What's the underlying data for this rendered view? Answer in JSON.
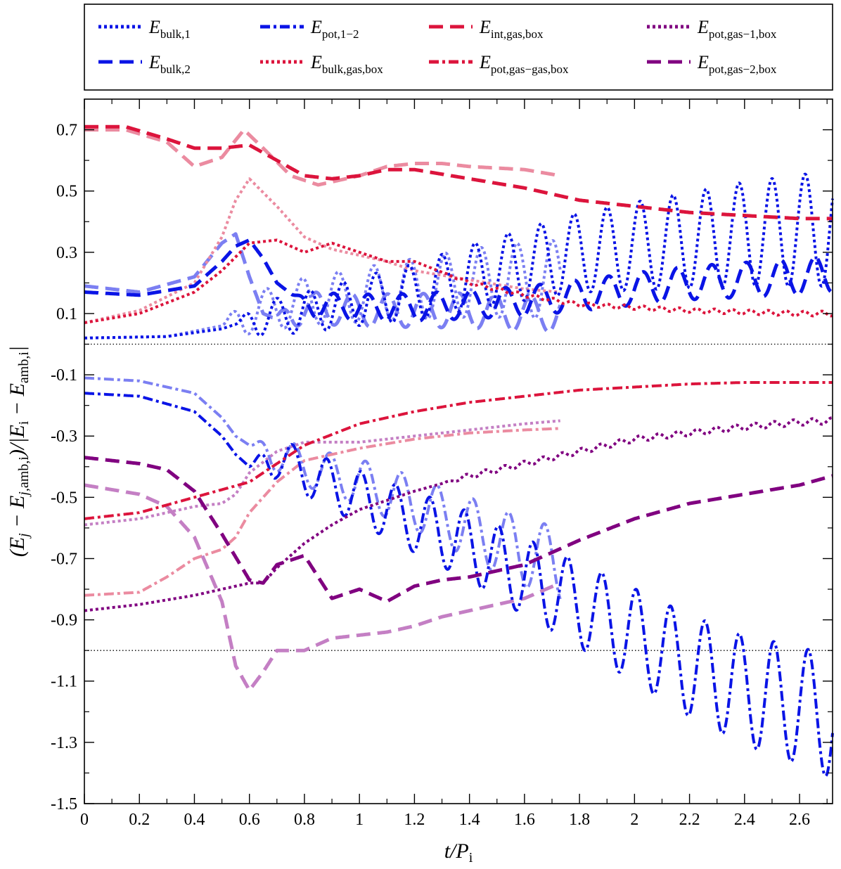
{
  "chart_data": {
    "type": "line",
    "xlabel": "t/P_i",
    "ylabel": "(E_j − E_j,amb,i)/|E_i − E_amb,i|",
    "xlim": [
      0,
      2.72
    ],
    "ylim": [
      -1.5,
      0.8
    ],
    "xticks": [
      {
        "value": 0,
        "label": "0"
      },
      {
        "value": 0.2,
        "label": "0.2"
      },
      {
        "value": 0.4,
        "label": "0.4"
      },
      {
        "value": 0.6,
        "label": "0.6"
      },
      {
        "value": 0.8,
        "label": "0.8"
      },
      {
        "value": 1,
        "label": "1"
      },
      {
        "value": 1.2,
        "label": "1.2"
      },
      {
        "value": 1.4,
        "label": "1.4"
      },
      {
        "value": 1.6,
        "label": "1.6"
      },
      {
        "value": 1.8,
        "label": "1.8"
      },
      {
        "value": 2,
        "label": "2"
      },
      {
        "value": 2.2,
        "label": "2.2"
      },
      {
        "value": 2.4,
        "label": "2.4"
      },
      {
        "value": 2.6,
        "label": "2.6"
      }
    ],
    "yticks": [
      {
        "value": 0.7,
        "label": "0.7"
      },
      {
        "value": 0.5,
        "label": "0.5"
      },
      {
        "value": 0.3,
        "label": "0.3"
      },
      {
        "value": 0.1,
        "label": "0.1"
      },
      {
        "value": -0.1,
        "label": "-0.1"
      },
      {
        "value": -0.3,
        "label": "-0.3"
      },
      {
        "value": -0.5,
        "label": "-0.5"
      },
      {
        "value": -0.7,
        "label": "-0.7"
      },
      {
        "value": -0.9,
        "label": "-0.9"
      },
      {
        "value": -1.1,
        "label": "-1.1"
      },
      {
        "value": -1.3,
        "label": "-1.3"
      },
      {
        "value": -1.5,
        "label": "-1.5"
      }
    ],
    "reference_lines": [
      0,
      -1
    ],
    "legend_placement": "top, outside plot, 4 columns",
    "legend": [
      {
        "name": "E_bulk,1",
        "base": "E",
        "sub": "bulk,1",
        "color": "#0a14e6",
        "dash": "4 4"
      },
      {
        "name": "E_bulk,2",
        "base": "E",
        "sub": "bulk,2",
        "color": "#0a14e6",
        "dash": "20 10"
      },
      {
        "name": "E_pot,1−2",
        "base": "E",
        "sub": "pot,1−2",
        "color": "#0a14e6",
        "dash": "14 5 4 5"
      },
      {
        "name": "E_bulk,gas,box",
        "base": "E",
        "sub": "bulk,gas,box",
        "color": "#dc143c",
        "dash": "4 4"
      },
      {
        "name": "E_int,gas,box",
        "base": "E",
        "sub": "int,gas,box",
        "color": "#dc143c",
        "dash": "20 10"
      },
      {
        "name": "E_pot,gas−gas,box",
        "base": "E",
        "sub": "pot,gas−gas,box",
        "color": "#dc143c",
        "dash": "14 5 4 5"
      },
      {
        "name": "E_pot,gas−1,box",
        "base": "E",
        "sub": "pot,gas−1,box",
        "color": "#800080",
        "dash": "4 4"
      },
      {
        "name": "E_pot,gas−2,box",
        "base": "E",
        "sub": "pot,gas−2,box",
        "color": "#800080",
        "dash": "20 10"
      }
    ],
    "series": [
      {
        "name": "E_bulk,1",
        "run": "main",
        "color": "#0a14e6",
        "width": 4,
        "dash": "4 4",
        "osc": {
          "start": 0.55,
          "period": 0.12,
          "amp0": 0.05,
          "amp1": 0.19
        },
        "x": [
          0,
          0.3,
          0.5,
          0.6,
          0.7,
          0.9,
          1.0,
          1.2,
          1.4,
          1.6,
          1.8,
          2.0,
          2.2,
          2.4,
          2.6,
          2.72
        ],
        "y": [
          0.02,
          0.025,
          0.05,
          0.08,
          0.09,
          0.12,
          0.14,
          0.17,
          0.22,
          0.26,
          0.3,
          0.32,
          0.34,
          0.36,
          0.37,
          0.38
        ]
      },
      {
        "name": "E_bulk,1",
        "run": "faded",
        "color": "#7b7ff2",
        "width": 4,
        "dash": "4 4",
        "osc": {
          "start": 0.5,
          "period": 0.13,
          "amp0": 0.06,
          "amp1": 0.13
        },
        "x": [
          0,
          0.3,
          0.5,
          0.6,
          0.8,
          1.0,
          1.2,
          1.4,
          1.6,
          1.73
        ],
        "y": [
          0.02,
          0.025,
          0.06,
          0.1,
          0.14,
          0.16,
          0.18,
          0.2,
          0.21,
          0.21
        ]
      },
      {
        "name": "E_bulk,2",
        "run": "main",
        "color": "#0a14e6",
        "width": 5,
        "dash": "20 10",
        "osc": {
          "start": 0.75,
          "period": 0.125,
          "amp0": 0.04,
          "amp1": 0.06
        },
        "x": [
          0,
          0.2,
          0.4,
          0.5,
          0.55,
          0.6,
          0.65,
          0.7,
          0.8,
          1.0,
          1.2,
          1.4,
          1.6,
          1.8,
          2.0,
          2.2,
          2.4,
          2.6,
          2.72
        ],
        "y": [
          0.17,
          0.16,
          0.19,
          0.27,
          0.32,
          0.34,
          0.28,
          0.2,
          0.13,
          0.12,
          0.12,
          0.13,
          0.14,
          0.16,
          0.18,
          0.2,
          0.21,
          0.22,
          0.23
        ]
      },
      {
        "name": "E_bulk,2",
        "run": "faded",
        "color": "#7b7ff2",
        "width": 5,
        "dash": "20 10",
        "osc": {
          "start": 0.68,
          "period": 0.13,
          "amp0": 0.05,
          "amp1": 0.06
        },
        "x": [
          0,
          0.2,
          0.4,
          0.5,
          0.55,
          0.6,
          0.65,
          0.7,
          0.8,
          1.0,
          1.2,
          1.4,
          1.6,
          1.73
        ],
        "y": [
          0.19,
          0.17,
          0.22,
          0.33,
          0.36,
          0.22,
          0.1,
          0.08,
          0.12,
          0.11,
          0.11,
          0.11,
          0.1,
          0.1
        ]
      },
      {
        "name": "E_pot,1−2",
        "run": "main",
        "color": "#0a14e6",
        "width": 4,
        "dash": "14 5 4 5",
        "osc": {
          "start": 0.6,
          "period": 0.125,
          "amp0": 0.06,
          "amp1": 0.2
        },
        "x": [
          0,
          0.2,
          0.4,
          0.5,
          0.55,
          0.6,
          0.7,
          0.8,
          1.0,
          1.2,
          1.4,
          1.6,
          1.8,
          2.0,
          2.2,
          2.4,
          2.6,
          2.72
        ],
        "y": [
          -0.16,
          -0.17,
          -0.22,
          -0.3,
          -0.36,
          -0.4,
          -0.37,
          -0.42,
          -0.5,
          -0.58,
          -0.66,
          -0.76,
          -0.85,
          -0.95,
          -1.05,
          -1.13,
          -1.18,
          -1.22
        ]
      },
      {
        "name": "E_pot,1−2",
        "run": "faded",
        "color": "#7b7ff2",
        "width": 4,
        "dash": "14 5 4 5",
        "osc": {
          "start": 0.6,
          "period": 0.13,
          "amp0": 0.05,
          "amp1": 0.12
        },
        "x": [
          0,
          0.2,
          0.4,
          0.5,
          0.55,
          0.6,
          0.7,
          0.8,
          1.0,
          1.2,
          1.4,
          1.6,
          1.73
        ],
        "y": [
          -0.11,
          -0.12,
          -0.16,
          -0.24,
          -0.3,
          -0.33,
          -0.36,
          -0.4,
          -0.45,
          -0.52,
          -0.6,
          -0.68,
          -0.72
        ]
      },
      {
        "name": "E_bulk,gas,box",
        "run": "main",
        "color": "#dc143c",
        "width": 4,
        "dash": "4 4",
        "osc": {
          "start": 1.3,
          "period": 0.065,
          "amp0": 0.005,
          "amp1": 0.008
        },
        "x": [
          0,
          0.2,
          0.4,
          0.5,
          0.6,
          0.7,
          0.8,
          0.9,
          1.0,
          1.1,
          1.2,
          1.4,
          1.6,
          1.8,
          2.0,
          2.2,
          2.4,
          2.6,
          2.72
        ],
        "y": [
          0.07,
          0.1,
          0.17,
          0.24,
          0.33,
          0.34,
          0.3,
          0.33,
          0.3,
          0.27,
          0.27,
          0.2,
          0.16,
          0.13,
          0.12,
          0.11,
          0.105,
          0.1,
          0.1
        ]
      },
      {
        "name": "E_bulk,gas,box",
        "run": "faded",
        "color": "#eb8ba0",
        "width": 4,
        "dash": "4 4",
        "x": [
          0,
          0.2,
          0.4,
          0.5,
          0.55,
          0.6,
          0.7,
          0.8,
          0.9,
          1.0,
          1.1,
          1.2,
          1.4,
          1.6,
          1.73
        ],
        "y": [
          0.07,
          0.11,
          0.2,
          0.35,
          0.47,
          0.54,
          0.45,
          0.35,
          0.31,
          0.29,
          0.27,
          0.24,
          0.21,
          0.18,
          0.17
        ]
      },
      {
        "name": "E_int,gas,box",
        "run": "main",
        "color": "#dc143c",
        "width": 5,
        "dash": "20 10",
        "x": [
          0,
          0.15,
          0.3,
          0.4,
          0.5,
          0.6,
          0.7,
          0.8,
          0.9,
          1.0,
          1.1,
          1.2,
          1.4,
          1.6,
          1.8,
          2.0,
          2.2,
          2.4,
          2.6,
          2.72
        ],
        "y": [
          0.71,
          0.71,
          0.67,
          0.64,
          0.64,
          0.65,
          0.6,
          0.55,
          0.54,
          0.55,
          0.57,
          0.57,
          0.54,
          0.51,
          0.47,
          0.45,
          0.43,
          0.42,
          0.41,
          0.41
        ]
      },
      {
        "name": "E_int,gas,box",
        "run": "faded",
        "color": "#eb8ba0",
        "width": 5,
        "dash": "20 10",
        "x": [
          0,
          0.15,
          0.3,
          0.4,
          0.5,
          0.58,
          0.65,
          0.75,
          0.85,
          1.0,
          1.1,
          1.2,
          1.3,
          1.4,
          1.6,
          1.73
        ],
        "y": [
          0.7,
          0.7,
          0.66,
          0.58,
          0.61,
          0.7,
          0.64,
          0.55,
          0.52,
          0.55,
          0.58,
          0.59,
          0.59,
          0.58,
          0.57,
          0.55
        ]
      },
      {
        "name": "E_pot,gas−gas,box",
        "run": "main",
        "color": "#dc143c",
        "width": 4,
        "dash": "14 5 4 5",
        "x": [
          0,
          0.2,
          0.4,
          0.6,
          0.7,
          0.8,
          1.0,
          1.2,
          1.4,
          1.6,
          1.8,
          2.0,
          2.2,
          2.4,
          2.6,
          2.72
        ],
        "y": [
          -0.57,
          -0.55,
          -0.5,
          -0.45,
          -0.39,
          -0.33,
          -0.26,
          -0.22,
          -0.19,
          -0.17,
          -0.15,
          -0.14,
          -0.13,
          -0.125,
          -0.125,
          -0.125
        ]
      },
      {
        "name": "E_pot,gas−gas,box",
        "run": "faded",
        "color": "#eb8ba0",
        "width": 4,
        "dash": "14 5 4 5",
        "x": [
          0,
          0.2,
          0.3,
          0.4,
          0.5,
          0.55,
          0.6,
          0.7,
          0.8,
          1.0,
          1.2,
          1.4,
          1.6,
          1.73
        ],
        "y": [
          -0.82,
          -0.81,
          -0.76,
          -0.7,
          -0.67,
          -0.63,
          -0.55,
          -0.45,
          -0.38,
          -0.34,
          -0.31,
          -0.29,
          -0.28,
          -0.275
        ]
      },
      {
        "name": "E_pot,gas−1,box",
        "run": "main",
        "color": "#800080",
        "width": 4,
        "dash": "4 4",
        "osc": {
          "start": 1.3,
          "period": 0.07,
          "amp0": 0.008,
          "amp1": 0.01
        },
        "x": [
          0,
          0.2,
          0.4,
          0.5,
          0.6,
          0.65,
          0.7,
          0.8,
          0.9,
          1.0,
          1.2,
          1.4,
          1.6,
          1.8,
          2.0,
          2.2,
          2.4,
          2.6,
          2.72
        ],
        "y": [
          -0.87,
          -0.85,
          -0.82,
          -0.8,
          -0.78,
          -0.78,
          -0.73,
          -0.65,
          -0.59,
          -0.54,
          -0.48,
          -0.43,
          -0.39,
          -0.35,
          -0.31,
          -0.29,
          -0.27,
          -0.255,
          -0.25
        ]
      },
      {
        "name": "E_pot,gas−1,box",
        "run": "faded",
        "color": "#c47fc4",
        "width": 4,
        "dash": "4 4",
        "x": [
          0,
          0.2,
          0.4,
          0.5,
          0.55,
          0.6,
          0.7,
          0.8,
          1.0,
          1.2,
          1.4,
          1.6,
          1.73
        ],
        "y": [
          -0.59,
          -0.57,
          -0.53,
          -0.52,
          -0.49,
          -0.42,
          -0.35,
          -0.32,
          -0.32,
          -0.3,
          -0.28,
          -0.26,
          -0.25
        ]
      },
      {
        "name": "E_pot,gas−2,box",
        "run": "main",
        "color": "#800080",
        "width": 5,
        "dash": "20 10",
        "x": [
          0,
          0.2,
          0.3,
          0.4,
          0.5,
          0.6,
          0.65,
          0.7,
          0.8,
          0.85,
          0.9,
          1.0,
          1.1,
          1.2,
          1.3,
          1.4,
          1.6,
          1.8,
          2.0,
          2.2,
          2.4,
          2.6,
          2.72
        ],
        "y": [
          -0.37,
          -0.39,
          -0.41,
          -0.48,
          -0.62,
          -0.77,
          -0.78,
          -0.72,
          -0.69,
          -0.76,
          -0.83,
          -0.8,
          -0.84,
          -0.79,
          -0.77,
          -0.76,
          -0.72,
          -0.64,
          -0.57,
          -0.52,
          -0.49,
          -0.46,
          -0.43
        ]
      },
      {
        "name": "E_pot,gas−2,box",
        "run": "faded",
        "color": "#c47fc4",
        "width": 5,
        "dash": "20 10",
        "x": [
          0,
          0.2,
          0.3,
          0.4,
          0.5,
          0.55,
          0.6,
          0.65,
          0.7,
          0.8,
          0.9,
          1.0,
          1.1,
          1.2,
          1.3,
          1.4,
          1.6,
          1.73
        ],
        "y": [
          -0.46,
          -0.49,
          -0.53,
          -0.63,
          -0.84,
          -1.05,
          -1.13,
          -1.07,
          -1.0,
          -1.0,
          -0.96,
          -0.95,
          -0.94,
          -0.92,
          -0.89,
          -0.87,
          -0.83,
          -0.78
        ]
      }
    ]
  }
}
